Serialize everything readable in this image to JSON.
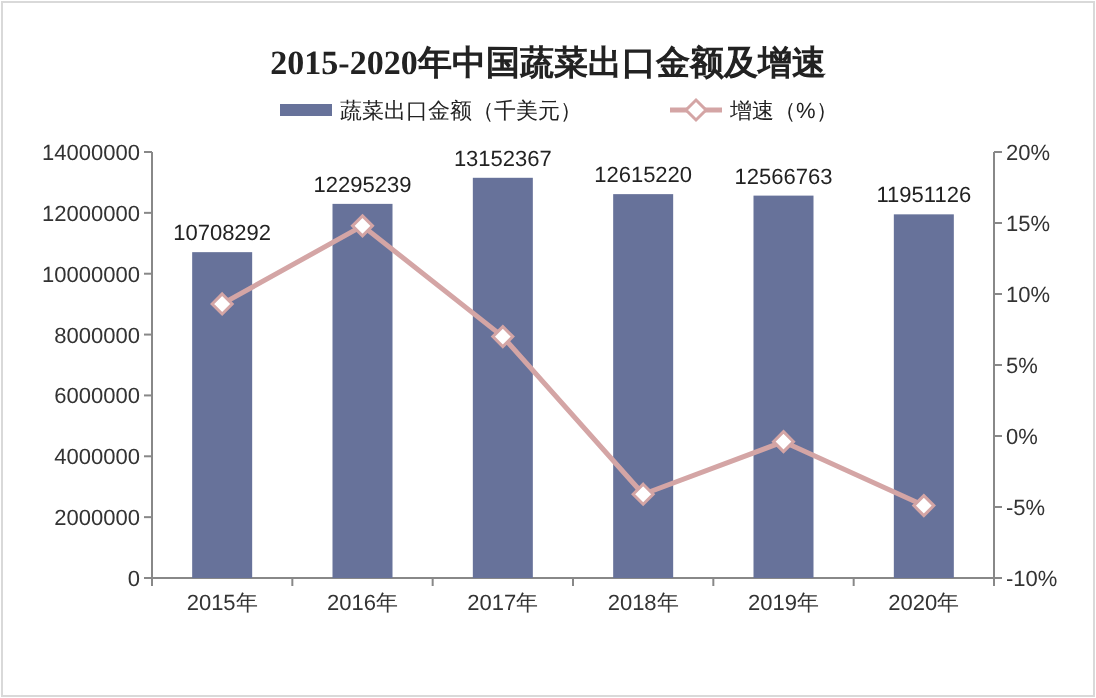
{
  "chart_data": {
    "type": "bar",
    "title": "2015-2020年中国蔬菜出口金额及增速",
    "categories": [
      "2015年",
      "2016年",
      "2017年",
      "2018年",
      "2019年",
      "2020年"
    ],
    "series": [
      {
        "name": "蔬菜出口金额（千美元）",
        "color": "#67729a",
        "values": [
          10708292,
          12295239,
          13152367,
          12615220,
          12566763,
          11951126
        ],
        "data_labels": true
      },
      {
        "name": "增速（%）",
        "type": "line",
        "axis": "y2",
        "color": "#d4a5a5",
        "marker": "diamond",
        "values": [
          9.3,
          14.8,
          7.0,
          -4.1,
          -0.4,
          -4.9
        ]
      }
    ],
    "ylim": [
      0,
      14000000
    ],
    "yticks": [
      0,
      2000000,
      4000000,
      6000000,
      8000000,
      10000000,
      12000000,
      14000000
    ],
    "y2lim": [
      -10,
      20
    ],
    "y2ticks": [
      {
        "value": -10,
        "label": "-10%"
      },
      {
        "value": -5,
        "label": "-5%"
      },
      {
        "value": 0,
        "label": "0%"
      },
      {
        "value": 5,
        "label": "5%"
      },
      {
        "value": 10,
        "label": "10%"
      },
      {
        "value": 15,
        "label": "15%"
      },
      {
        "value": 20,
        "label": "20%"
      }
    ],
    "legend": "top",
    "grid": false
  }
}
